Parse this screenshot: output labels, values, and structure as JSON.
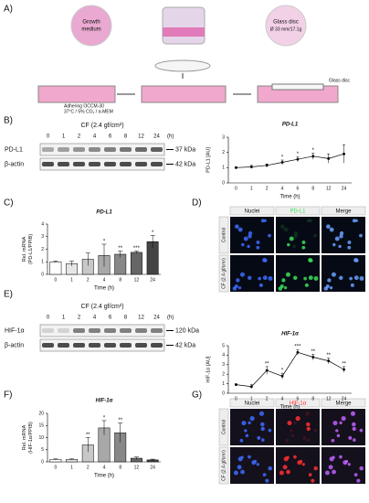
{
  "panel_letters": [
    "A)",
    "B)",
    "C)",
    "D)",
    "E)",
    "F)",
    "G)"
  ],
  "panel_a": {
    "growth_medium": [
      "Growth",
      "medium"
    ],
    "glass_disc_top": "Glass disc",
    "disc_size": "Ø 33 mm/17.1g",
    "cells": "Adhering OCCM-30",
    "conditions": "37°C / 5% CO₂ / α-MEM",
    "glass_disc_bottom": "Glass disc"
  },
  "blots": [
    {
      "condition": "CF (2.4 gf/cm²)",
      "lanes": [
        "0",
        "1",
        "2",
        "4",
        "6",
        "8",
        "12",
        "24"
      ],
      "unit": "(h)",
      "rows": [
        {
          "label": "PD-L1",
          "size": "37 kDa"
        },
        {
          "label": "β-actin",
          "size": "42 kDa"
        }
      ]
    },
    {
      "condition": "CF (2.4 gf/cm²)",
      "lanes": [
        "0",
        "1",
        "2",
        "4",
        "6",
        "8",
        "12",
        "24"
      ],
      "unit": "(h)",
      "rows": [
        {
          "label": "HIF-1α",
          "size": "120 kDa"
        },
        {
          "label": "β-actin",
          "size": "42 kDa"
        }
      ]
    }
  ],
  "microscopy": [
    {
      "columns": [
        "Nuclei",
        "PD-L1",
        "Merge"
      ],
      "rows": [
        "Control",
        "CF (2.4 gf/cm²)"
      ]
    },
    {
      "columns": [
        "Nuclei",
        "HIF-1α",
        "Merge"
      ],
      "rows": [
        "Control",
        "CF (2.4 gf/cm²)"
      ]
    }
  ],
  "chart_data": [
    {
      "type": "line",
      "title": "PD-L1",
      "xlabel": "Time (h)",
      "ylabel": [
        "PD-L1 [AU]"
      ],
      "categories": [
        "0",
        "1",
        "2",
        "4",
        "6",
        "8",
        "12",
        "24"
      ],
      "values": [
        1.0,
        1.05,
        1.15,
        1.35,
        1.55,
        1.75,
        1.6,
        1.9
      ],
      "errors": [
        0.05,
        0.1,
        0.1,
        0.15,
        0.15,
        0.2,
        0.3,
        0.6
      ],
      "significance": [
        null,
        null,
        null,
        "*",
        "*",
        "*",
        null,
        null
      ],
      "color": "#000000",
      "ylim": [
        0,
        3
      ],
      "yticks": [
        0,
        1,
        2,
        3
      ]
    },
    {
      "type": "bar",
      "title": "PD-L1",
      "xlabel": "Time (h)",
      "ylabel": [
        "Rel. mRNA",
        "(PD-L1/PPIB)"
      ],
      "categories": [
        "0",
        "1",
        "2",
        "4",
        "8",
        "12",
        "24"
      ],
      "values": [
        1.0,
        0.85,
        1.2,
        1.5,
        1.6,
        1.75,
        2.6
      ],
      "errors": [
        0.05,
        0.2,
        0.5,
        0.9,
        0.25,
        0.1,
        0.5
      ],
      "significance": [
        null,
        null,
        null,
        "*",
        "**",
        "***",
        "*"
      ],
      "colors": [
        "#ffffff",
        "#e6e6e6",
        "#c8c8c8",
        "#a8a8a8",
        "#888888",
        "#666666",
        "#444444"
      ],
      "ylim": [
        0,
        4
      ],
      "yticks": [
        0,
        1,
        2,
        3,
        4
      ]
    },
    {
      "type": "line",
      "title": "HIF-1α",
      "xlabel": "Time (h)",
      "ylabel": [
        "HIF-1α [AU]"
      ],
      "categories": [
        "0",
        "1",
        "2",
        "4",
        "6",
        "8",
        "12",
        "24"
      ],
      "values": [
        0.9,
        0.7,
        2.4,
        1.8,
        4.3,
        3.8,
        3.4,
        2.5
      ],
      "errors": [
        0.1,
        0.2,
        0.4,
        0.3,
        0.3,
        0.3,
        0.3,
        0.3
      ],
      "significance": [
        null,
        null,
        "**",
        "*",
        "***",
        "**",
        "**",
        "**"
      ],
      "color": "#000000",
      "ylim": [
        0,
        5
      ],
      "yticks": [
        0,
        1,
        2,
        3,
        4,
        5
      ]
    },
    {
      "type": "bar",
      "title": "HIF-1α",
      "xlabel": "Time (h)",
      "ylabel": [
        "Rel. mRNA",
        "(HIF-1α/PPIB)"
      ],
      "categories": [
        "0",
        "1",
        "2",
        "4",
        "8",
        "12",
        "24"
      ],
      "values": [
        1.0,
        1.0,
        7.0,
        14.0,
        12.0,
        1.5,
        0.8
      ],
      "errors": [
        0.2,
        0.2,
        3.0,
        3.0,
        4.0,
        0.5,
        0.3
      ],
      "significance": [
        null,
        null,
        "**",
        "*",
        "**",
        null,
        null
      ],
      "colors": [
        "#ffffff",
        "#e6e6e6",
        "#c8c8c8",
        "#a8a8a8",
        "#888888",
        "#666666",
        "#444444"
      ],
      "ylim": [
        0,
        20
      ],
      "yticks": [
        0,
        5,
        10,
        15,
        20
      ]
    }
  ]
}
